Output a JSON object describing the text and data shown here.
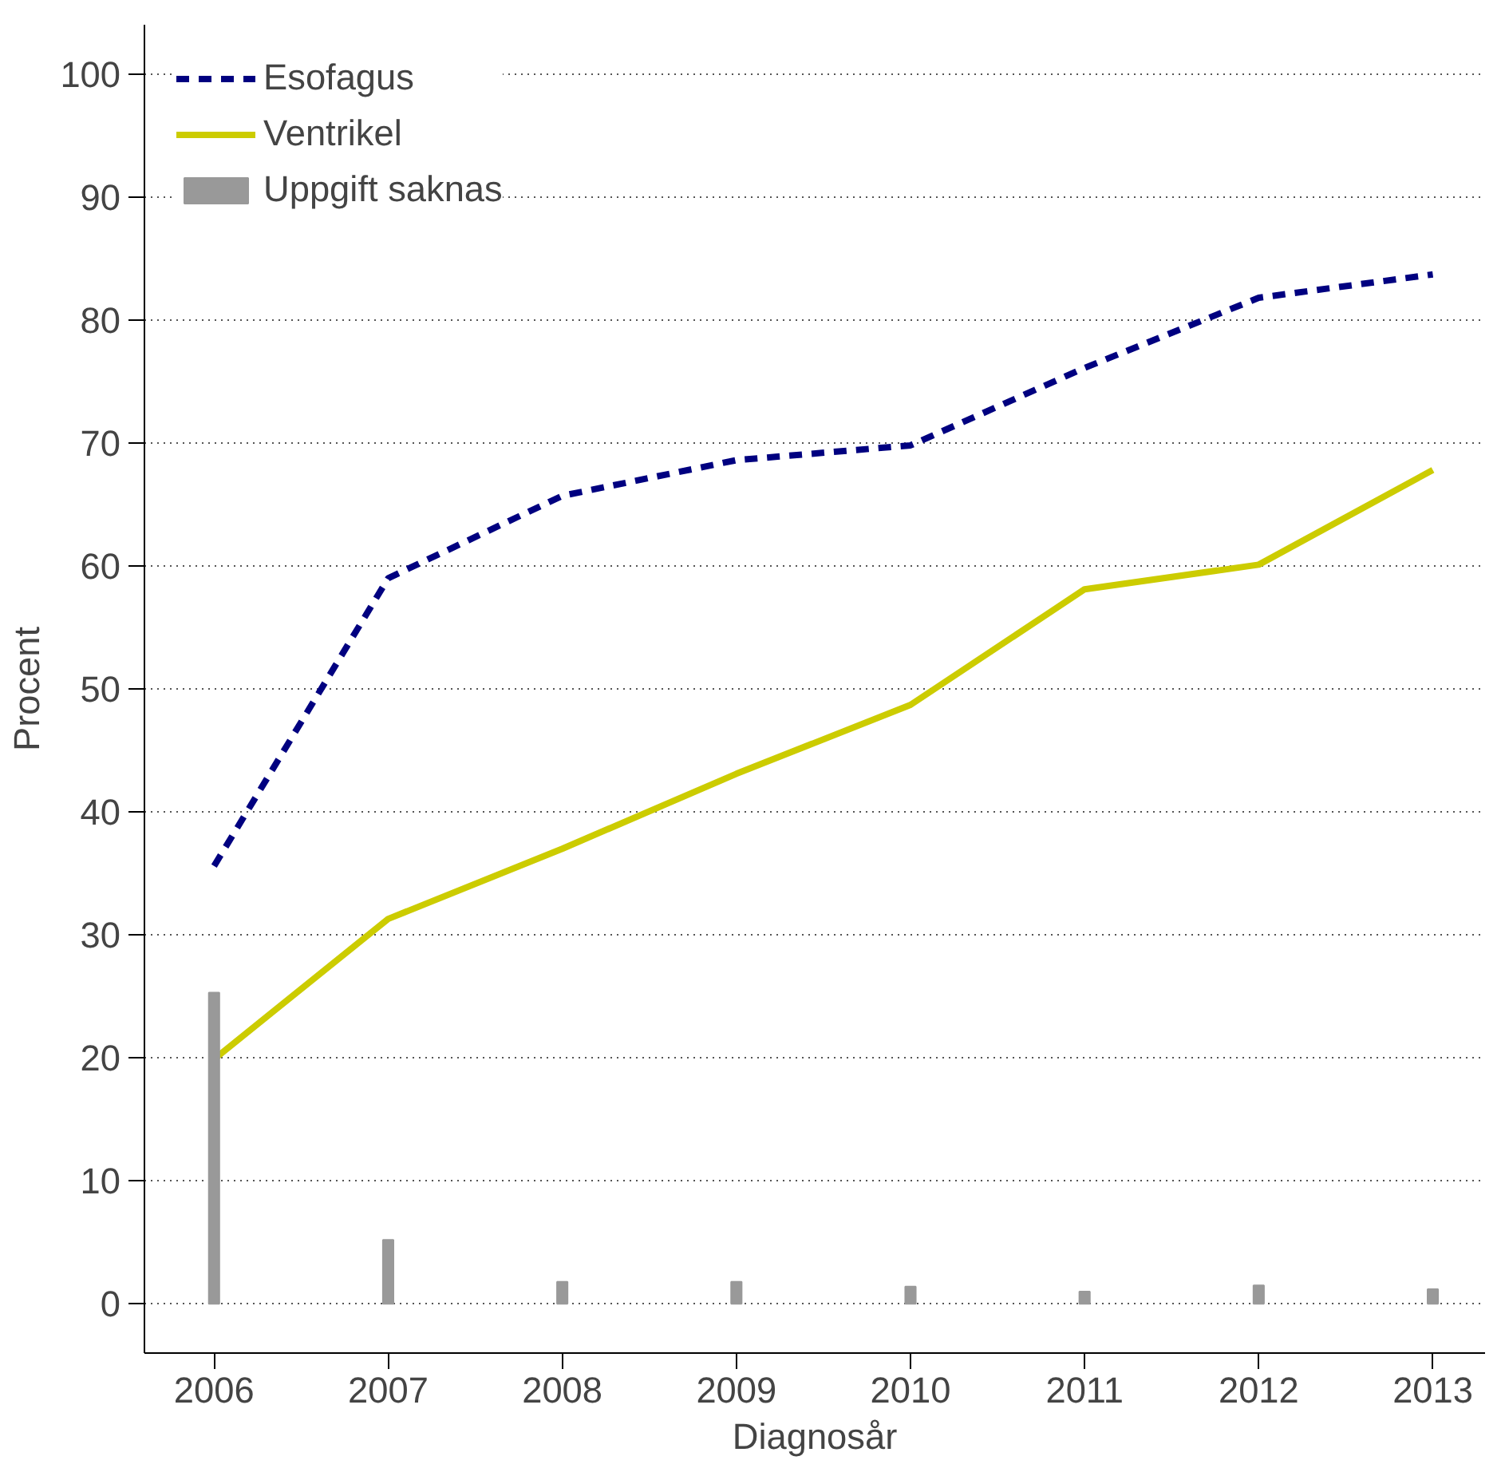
{
  "chart_data": {
    "type": "line",
    "xlabel": "Diagnosår",
    "ylabel": "Procent",
    "x": [
      2006,
      2007,
      2008,
      2009,
      2010,
      2011,
      2012,
      2013
    ],
    "series": [
      {
        "name": "Esofagus",
        "color": "#000080",
        "line_style": "dashed",
        "values": [
          35.6,
          59.0,
          65.7,
          68.6,
          69.8,
          76.1,
          81.8,
          83.7
        ]
      },
      {
        "name": "Ventrikel",
        "color": "#cccc00",
        "line_style": "solid",
        "values": [
          19.9,
          31.3,
          37.0,
          43.1,
          48.7,
          58.1,
          60.1,
          67.8
        ]
      },
      {
        "name": "Uppgift saknas",
        "type": "bar",
        "color": "#999999",
        "values": [
          25.3,
          5.2,
          1.8,
          1.8,
          1.4,
          1.0,
          1.5,
          1.2
        ]
      }
    ],
    "xlim": [
      2005.6,
      2013.3
    ],
    "ylim": [
      -4,
      104
    ],
    "xticks": [
      2006,
      2007,
      2008,
      2009,
      2010,
      2011,
      2012,
      2013
    ],
    "yticks": [
      0,
      10,
      20,
      30,
      40,
      50,
      60,
      70,
      80,
      90,
      100
    ],
    "grid": "y",
    "legend": "top left"
  }
}
